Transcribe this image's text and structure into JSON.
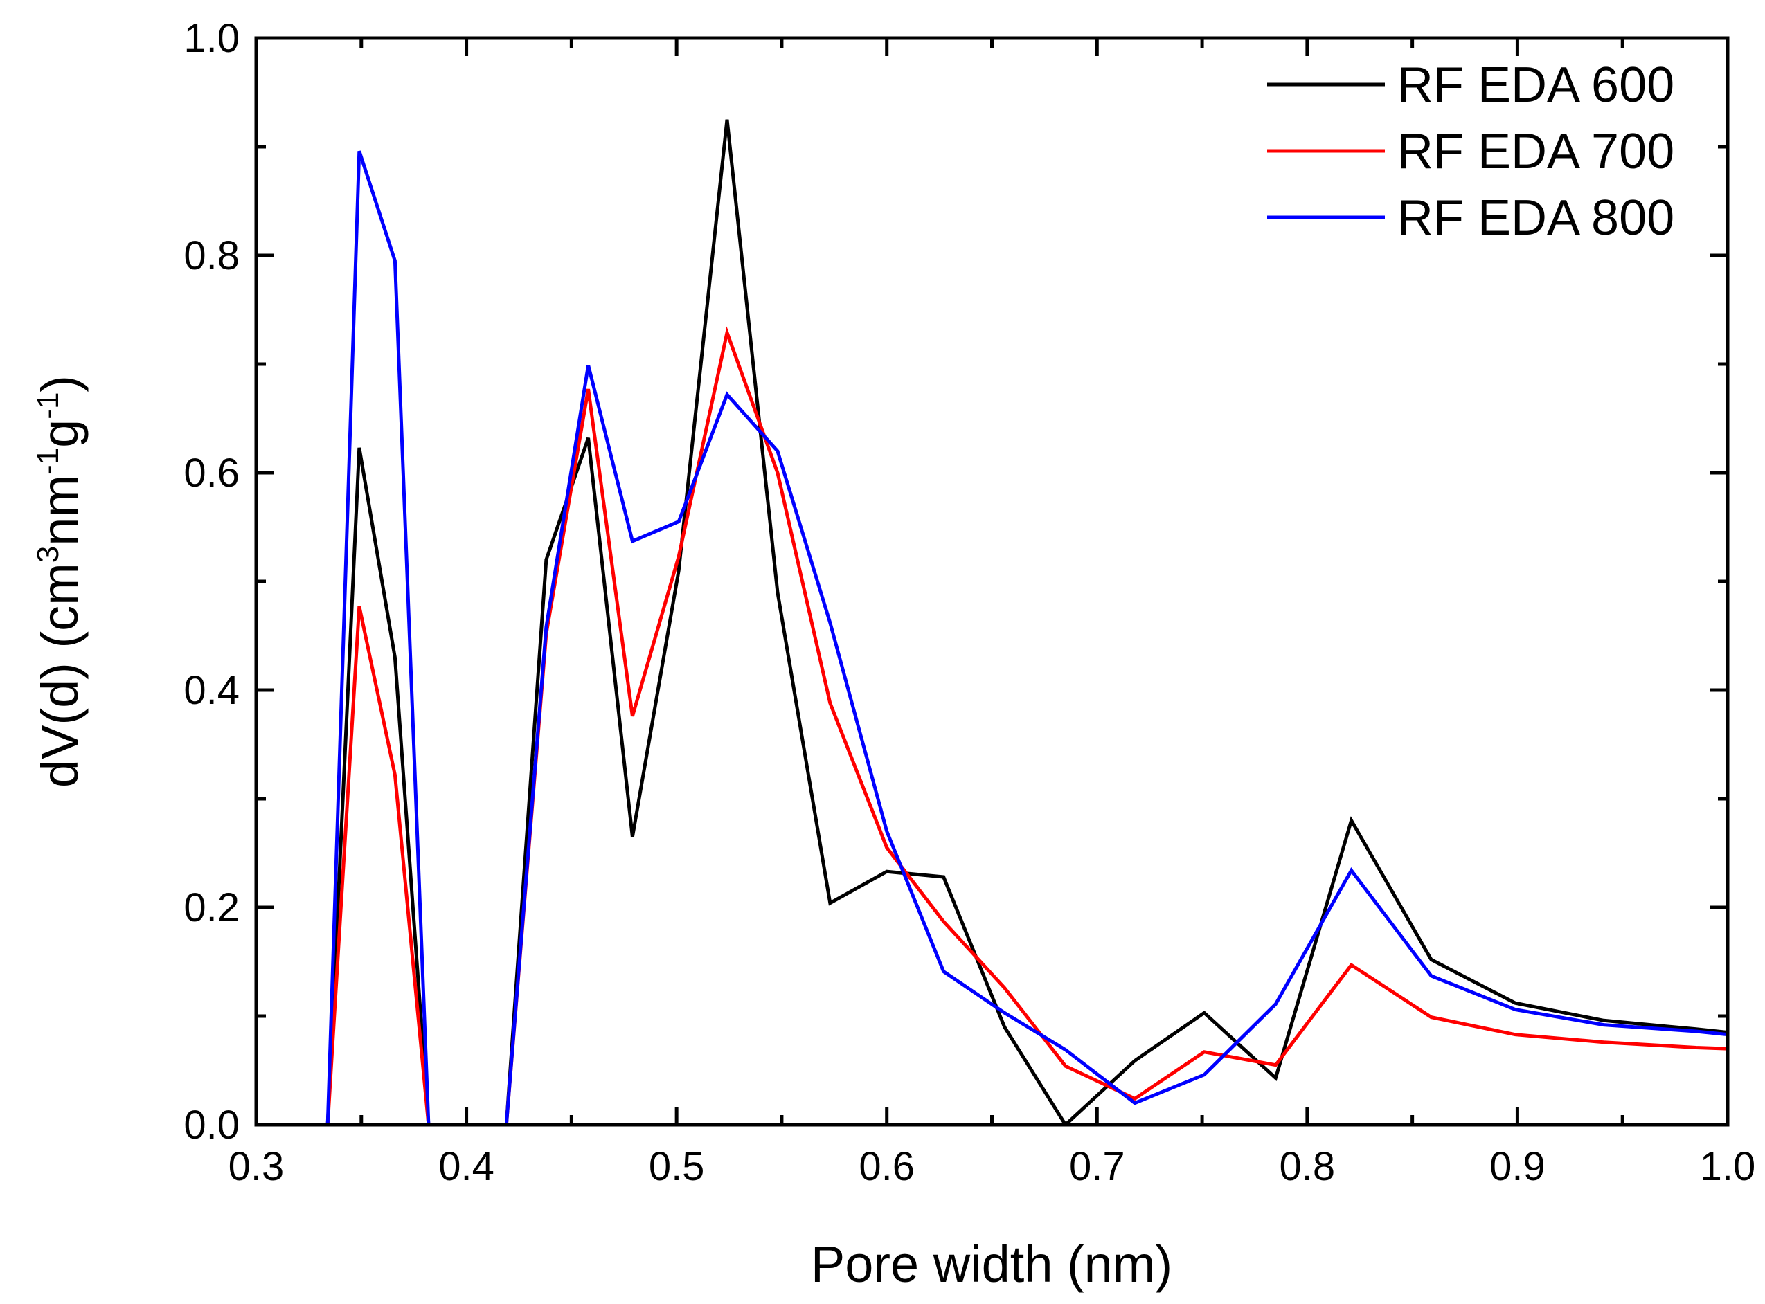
{
  "chart_data": {
    "type": "line",
    "title": "",
    "xlabel": "Pore width (nm)",
    "ylabel": {
      "parts": [
        "dV(d) (cm",
        "3",
        "nm",
        "-1",
        "g",
        "-1",
        ")"
      ]
    },
    "xlim": [
      0.3,
      1.0
    ],
    "ylim": [
      0.0,
      1.0
    ],
    "xticks": [
      0.3,
      0.4,
      0.5,
      0.6,
      0.7,
      0.8,
      0.9,
      1.0
    ],
    "xtick_labels": [
      "0.3",
      "0.4",
      "0.5",
      "0.6",
      "0.7",
      "0.8",
      "0.9",
      "1.0"
    ],
    "yticks": [
      0.0,
      0.2,
      0.4,
      0.6,
      0.8,
      1.0
    ],
    "ytick_labels": [
      "0.0",
      "0.2",
      "0.4",
      "0.6",
      "0.8",
      "1.0"
    ],
    "grid": false,
    "legend_position": "top-right",
    "series": [
      {
        "name": "RF EDA 600",
        "color": "#000000",
        "x": [
          0.3,
          0.334,
          0.349,
          0.366,
          0.382,
          0.419,
          0.438,
          0.458,
          0.479,
          0.501,
          0.524,
          0.548,
          0.573,
          0.6,
          0.627,
          0.656,
          0.685,
          0.718,
          0.751,
          0.785,
          0.821,
          0.859,
          0.899,
          0.941,
          0.985,
          1.0
        ],
        "y": [
          0.0,
          0.0,
          0.623,
          0.43,
          0.0,
          0.0,
          0.52,
          0.632,
          0.265,
          0.51,
          0.925,
          0.49,
          0.204,
          0.233,
          0.228,
          0.09,
          0.0,
          0.059,
          0.103,
          0.043,
          0.28,
          0.152,
          0.112,
          0.096,
          0.088,
          0.085
        ]
      },
      {
        "name": "RF EDA 700",
        "color": "#ff0000",
        "x": [
          0.3,
          0.334,
          0.349,
          0.366,
          0.382,
          0.419,
          0.438,
          0.458,
          0.479,
          0.501,
          0.524,
          0.548,
          0.573,
          0.6,
          0.627,
          0.656,
          0.685,
          0.718,
          0.751,
          0.785,
          0.821,
          0.859,
          0.899,
          0.941,
          0.985,
          1.0
        ],
        "y": [
          0.0,
          0.0,
          0.477,
          0.322,
          0.0,
          0.0,
          0.452,
          0.677,
          0.376,
          0.523,
          0.729,
          0.6,
          0.388,
          0.255,
          0.187,
          0.126,
          0.054,
          0.024,
          0.067,
          0.055,
          0.147,
          0.099,
          0.083,
          0.076,
          0.071,
          0.07
        ]
      },
      {
        "name": "RF EDA 800",
        "color": "#0000ff",
        "x": [
          0.3,
          0.334,
          0.349,
          0.366,
          0.382,
          0.419,
          0.438,
          0.458,
          0.479,
          0.501,
          0.524,
          0.548,
          0.573,
          0.6,
          0.627,
          0.656,
          0.685,
          0.718,
          0.751,
          0.785,
          0.821,
          0.859,
          0.899,
          0.941,
          0.985,
          1.0
        ],
        "y": [
          0.0,
          0.0,
          0.896,
          0.795,
          0.0,
          0.0,
          0.458,
          0.699,
          0.537,
          0.555,
          0.672,
          0.62,
          0.462,
          0.27,
          0.141,
          0.103,
          0.069,
          0.02,
          0.046,
          0.111,
          0.234,
          0.137,
          0.106,
          0.092,
          0.086,
          0.083
        ]
      }
    ]
  }
}
